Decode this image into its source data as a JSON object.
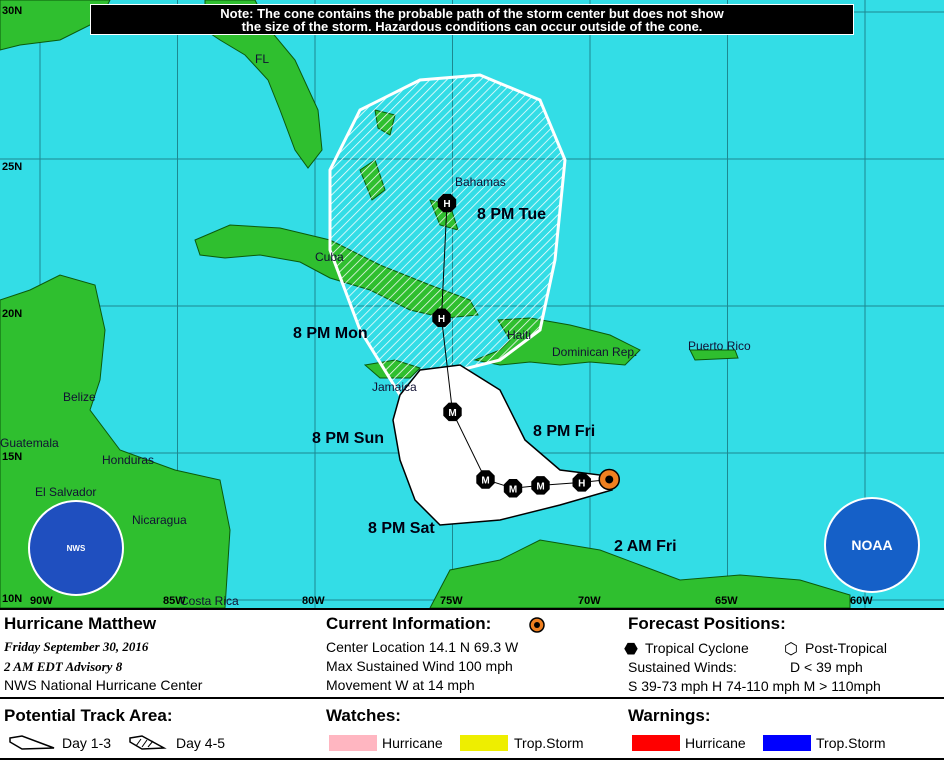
{
  "note": {
    "line1": "Note: The cone contains the probable path of the storm center but does not show",
    "line2": "the size of the storm. Hazardous conditions can occur outside of the cone."
  },
  "axes": {
    "lat": [
      "30N",
      "25N",
      "20N",
      "15N",
      "10N"
    ],
    "lon": [
      "90W",
      "85W",
      "80W",
      "75W",
      "70W",
      "65W",
      "60W"
    ]
  },
  "places": {
    "fl": "FL",
    "bahamas": "Bahamas",
    "cuba": "Cuba",
    "haiti": "Haiti",
    "dominican": "Dominican Rep.",
    "puerto_rico": "Puerto Rico",
    "jamaica": "Jamaica",
    "belize": "Belize",
    "guatemala": "Guatemala",
    "honduras": "Honduras",
    "el_salvador": "El Salvador",
    "nicaragua": "Nicaragua",
    "costa_rica": "Costa Rica"
  },
  "track": {
    "labels": {
      "tue": "8 PM Tue",
      "mon": "8 PM Mon",
      "sun": "8 PM Sun",
      "fri": "8 PM Fri",
      "sat": "8 PM Sat",
      "current": "2 AM Fri"
    },
    "points": [
      {
        "time": "2 AM Fri",
        "type": "current",
        "lat": 14.1,
        "lon": -69.3
      },
      {
        "type": "H",
        "lat": 14.0,
        "lon": -70.3
      },
      {
        "time": "8 PM Fri",
        "type": "M",
        "lat": 13.9,
        "lon": -71.8
      },
      {
        "type": "M",
        "lat": 13.8,
        "lon": -72.8
      },
      {
        "time": "8 PM Sat",
        "type": "M",
        "lat": 14.1,
        "lon": -73.8
      },
      {
        "time": "8 PM Sun",
        "type": "M",
        "lat": 16.4,
        "lon": -75.0
      },
      {
        "time": "8 PM Mon",
        "type": "H",
        "lat": 19.6,
        "lon": -75.4
      },
      {
        "time": "8 PM Tue",
        "type": "H",
        "lat": 23.5,
        "lon": -75.2
      }
    ]
  },
  "colors": {
    "water": "#33dde6",
    "land": "#2fbf2f",
    "cone_day13": "#ffffff",
    "trop_storm_watch": "#eeee00",
    "hurricane_watch": "#ffb6c1",
    "hurricane_warning": "#ff0000",
    "trop_storm_warning": "#0000ff",
    "current_marker": "#f08020"
  },
  "logos": {
    "nws": "NATIONAL WEATHER SERVICE",
    "noaa": "NOAA"
  },
  "legend": {
    "storm_name": "Hurricane Matthew",
    "date": "Friday   September 30, 2016",
    "advisory": "2 AM EDT Advisory 8",
    "center": "NWS National Hurricane Center",
    "current_title": "Current Information:",
    "location": "Center Location 14.1 N  69.3 W",
    "wind": "Max Sustained Wind  100 mph",
    "movement": "Movement W at  14 mph",
    "forecast_title": "Forecast Positions:",
    "tropical": "Tropical Cyclone",
    "post_tropical": "Post-Tropical",
    "sustained": "Sustained Winds:",
    "d": "D  < 39 mph",
    "shm": "S  39-73 mph  H  74-110 mph  M  > 110mph",
    "track_title": "Potential Track Area:",
    "day13": "Day 1-3",
    "day45": "Day 4-5",
    "watches_title": "Watches:",
    "warnings_title": "Warnings:",
    "hurricane": "Hurricane",
    "trop_storm": "Trop.Storm"
  }
}
